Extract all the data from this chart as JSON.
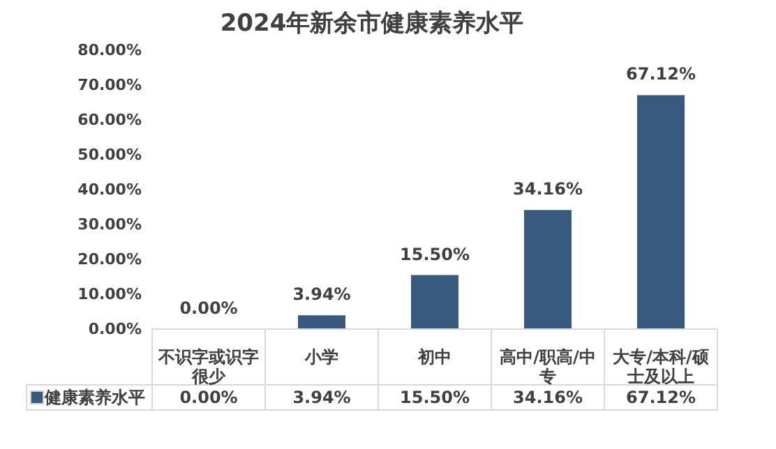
{
  "chart_data": {
    "type": "bar",
    "title": "2024年新余市健康素养水平",
    "categories": [
      "不识字或识字很少",
      "小学",
      "初中",
      "高中/职高/中专",
      "大专/本科/硕士及以上"
    ],
    "series": [
      {
        "name": "健康素养水平",
        "color": "#385a7e",
        "values": [
          0.0,
          3.94,
          15.5,
          34.16,
          67.12
        ]
      }
    ],
    "value_labels": [
      "0.00%",
      "3.94%",
      "15.50%",
      "34.16%",
      "67.12%"
    ],
    "ylim": [
      0,
      80
    ],
    "yticks": [
      {
        "value": 0,
        "label": "0.00%"
      },
      {
        "value": 10,
        "label": "10.00%"
      },
      {
        "value": 20,
        "label": "20.00%"
      },
      {
        "value": 30,
        "label": "30.00%"
      },
      {
        "value": 40,
        "label": "40.00%"
      },
      {
        "value": 50,
        "label": "50.00%"
      },
      {
        "value": 60,
        "label": "60.00%"
      },
      {
        "value": 70,
        "label": "70.00%"
      },
      {
        "value": 80,
        "label": "80.00%"
      }
    ],
    "grid": false,
    "legend": "bottom"
  }
}
